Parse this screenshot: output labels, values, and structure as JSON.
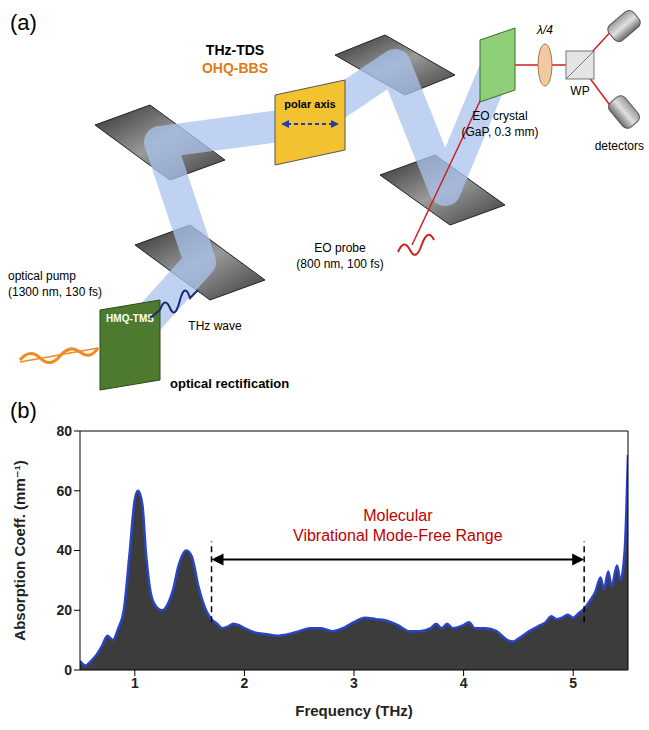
{
  "diagram": {
    "label": "(a)",
    "header": [
      "THz-TDS",
      "OHQ-BBS"
    ],
    "emitter": "HMQ-TMS",
    "sample": "polar axis",
    "eo_crystal": [
      "EO crystal",
      "(GaP, 0.3 mm)"
    ],
    "probe": [
      "EO probe",
      "(800 nm, 100 fs)"
    ],
    "waveplate": "λ/4",
    "wp": "WP",
    "detectors": "detectors",
    "pump": [
      "optical pump",
      "(1300 nm, 130 fs)"
    ],
    "thz": "THz wave",
    "process": "optical rectification"
  },
  "chart_data": {
    "type": "area",
    "panel_label": "(b)",
    "x_label": "Frequency (THz)",
    "y_label": "Absorption Coeff. (mm⁻¹)",
    "color": "#2a44c8",
    "grid": false,
    "xlim": [
      0.5,
      5.5
    ],
    "xticks": [
      1,
      2,
      3,
      4,
      5
    ],
    "ylim": [
      0,
      80
    ],
    "yticks": [
      0,
      20,
      40,
      60,
      80
    ],
    "x": [
      0.5,
      0.55,
      0.6,
      0.65,
      0.7,
      0.75,
      0.8,
      0.85,
      0.9,
      0.95,
      1.0,
      1.03,
      1.07,
      1.1,
      1.15,
      1.2,
      1.25,
      1.3,
      1.35,
      1.4,
      1.47,
      1.52,
      1.58,
      1.65,
      1.7,
      1.75,
      1.8,
      1.85,
      1.9,
      1.95,
      2.0,
      2.1,
      2.2,
      2.3,
      2.4,
      2.5,
      2.6,
      2.7,
      2.8,
      2.9,
      3.0,
      3.1,
      3.2,
      3.3,
      3.4,
      3.5,
      3.6,
      3.7,
      3.75,
      3.8,
      3.85,
      3.9,
      4.0,
      4.05,
      4.1,
      4.2,
      4.3,
      4.4,
      4.45,
      4.5,
      4.6,
      4.7,
      4.75,
      4.8,
      4.85,
      4.9,
      4.95,
      5.0,
      5.05,
      5.1,
      5.15,
      5.2,
      5.25,
      5.28,
      5.32,
      5.35,
      5.4,
      5.43,
      5.47,
      5.5
    ],
    "values": [
      3,
      1.5,
      3,
      5,
      8,
      11.5,
      10,
      14,
      20,
      38,
      57,
      60,
      55,
      40,
      25,
      21,
      20,
      22,
      27,
      35,
      40,
      38,
      28,
      20,
      17,
      15.5,
      14,
      14.5,
      15.5,
      15,
      14,
      12.5,
      12,
      11.5,
      12,
      13,
      14,
      14,
      13,
      14,
      16,
      17.5,
      17,
      16.5,
      15,
      13,
      13,
      14,
      15.5,
      14,
      15.5,
      14,
      15,
      16,
      14,
      14,
      13,
      10,
      9.5,
      10.5,
      13,
      15,
      16,
      18,
      17,
      17.5,
      18.5,
      17.5,
      19,
      20.5,
      23,
      26,
      31,
      27,
      33,
      28,
      35,
      30,
      40,
      72
    ],
    "annotation": {
      "text": [
        "Molecular",
        "Vibrational Mode-Free Range"
      ],
      "x": [
        1.7,
        5.1
      ],
      "y": 37,
      "y_range": [
        16,
        43
      ]
    }
  }
}
